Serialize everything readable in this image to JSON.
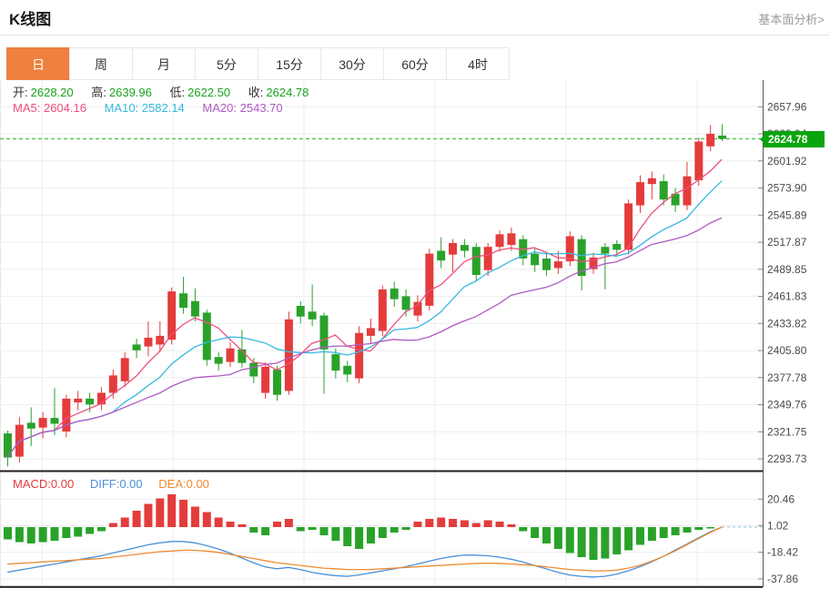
{
  "header": {
    "title": "K线图",
    "link": "基本面分析>"
  },
  "tabs": {
    "items": [
      {
        "label": "日",
        "active": true
      },
      {
        "label": "周",
        "active": false
      },
      {
        "label": "月",
        "active": false
      },
      {
        "label": "5分",
        "active": false
      },
      {
        "label": "15分",
        "active": false
      },
      {
        "label": "30分",
        "active": false
      },
      {
        "label": "60分",
        "active": false
      },
      {
        "label": "4时",
        "active": false
      }
    ]
  },
  "ohlc_info": {
    "open_label": "开:",
    "open": "2628.20",
    "high_label": "高:",
    "high": "2639.96",
    "low_label": "低:",
    "low": "2622.50",
    "close_label": "收:",
    "close": "2624.78"
  },
  "ma_info": {
    "ma5_label": "MA5:",
    "ma5": "2604.16",
    "ma10_label": "MA10:",
    "ma10": "2582.14",
    "ma20_label": "MA20:",
    "ma20": "2543.70"
  },
  "macd_info": {
    "macd_label": "MACD:",
    "macd": "0.00",
    "diff_label": "DIFF:",
    "diff": "0.00",
    "dea_label": "DEA:",
    "dea": "0.00"
  },
  "price_badge": "2624.78",
  "colors": {
    "up": "#e43c3c",
    "down": "#2aa22a",
    "badge": "#0aa50e",
    "tab_accent": "#ee8140",
    "ma5": "#ee4f7e",
    "ma10": "#36b8e0",
    "ma20": "#b05ac4",
    "diff": "#4a90d8",
    "dea": "#ef8b31",
    "price_line": "#2db82d",
    "macd_zero_dash": "#8fc0dc",
    "grid": "#ededed",
    "axis": "#555555",
    "separator": "#1f1f1f"
  },
  "chart_data": {
    "type": "candlestick",
    "title": "K线图 日线",
    "price_axis_ticks": [
      "2657.96",
      "2629.94",
      "2601.92",
      "2573.90",
      "2545.89",
      "2517.87",
      "2489.85",
      "2461.83",
      "2433.82",
      "2405.80",
      "2377.78",
      "2349.76",
      "2321.75",
      "2293.73"
    ],
    "macd_axis_ticks": [
      "20.46",
      "1.02",
      "-18.42",
      "-37.86"
    ],
    "last_price": 2624.78,
    "ma_windows": [
      5,
      10,
      20
    ],
    "candles": [
      [
        2320,
        2323,
        2286,
        2295
      ],
      [
        2296,
        2337,
        2290,
        2329
      ],
      [
        2331,
        2347,
        2307,
        2325
      ],
      [
        2326,
        2342,
        2315,
        2336
      ],
      [
        2336,
        2367,
        2318,
        2330
      ],
      [
        2322,
        2360,
        2316,
        2356
      ],
      [
        2352,
        2364,
        2344,
        2356
      ],
      [
        2356,
        2362,
        2342,
        2350
      ],
      [
        2350,
        2368,
        2344,
        2362
      ],
      [
        2362,
        2386,
        2356,
        2380
      ],
      [
        2374,
        2404,
        2368,
        2398
      ],
      [
        2412,
        2418,
        2398,
        2406
      ],
      [
        2410,
        2436,
        2400,
        2419
      ],
      [
        2412,
        2436,
        2404,
        2421
      ],
      [
        2417,
        2471,
        2412,
        2467
      ],
      [
        2465,
        2482,
        2444,
        2450
      ],
      [
        2457,
        2470,
        2436,
        2441
      ],
      [
        2445,
        2448,
        2390,
        2396
      ],
      [
        2399,
        2404,
        2385,
        2392
      ],
      [
        2394,
        2414,
        2389,
        2408
      ],
      [
        2407,
        2427,
        2388,
        2393
      ],
      [
        2393,
        2398,
        2372,
        2379
      ],
      [
        2362,
        2394,
        2356,
        2389
      ],
      [
        2386,
        2390,
        2354,
        2360
      ],
      [
        2364,
        2446,
        2360,
        2438
      ],
      [
        2452,
        2457,
        2434,
        2441
      ],
      [
        2446,
        2474,
        2431,
        2438
      ],
      [
        2442,
        2445,
        2361,
        2407
      ],
      [
        2402,
        2408,
        2377,
        2385
      ],
      [
        2390,
        2395,
        2373,
        2381
      ],
      [
        2377,
        2431,
        2372,
        2424
      ],
      [
        2421,
        2439,
        2413,
        2429
      ],
      [
        2426,
        2473,
        2421,
        2469
      ],
      [
        2470,
        2477,
        2451,
        2459
      ],
      [
        2462,
        2469,
        2441,
        2448
      ],
      [
        2442,
        2463,
        2436,
        2456
      ],
      [
        2452,
        2511,
        2447,
        2506
      ],
      [
        2509,
        2523,
        2491,
        2499
      ],
      [
        2505,
        2521,
        2487,
        2517
      ],
      [
        2515,
        2521,
        2502,
        2509
      ],
      [
        2513,
        2517,
        2477,
        2484
      ],
      [
        2489,
        2517,
        2483,
        2513
      ],
      [
        2513,
        2530,
        2508,
        2526
      ],
      [
        2515,
        2533,
        2509,
        2527
      ],
      [
        2521,
        2525,
        2494,
        2501
      ],
      [
        2506,
        2511,
        2487,
        2494
      ],
      [
        2501,
        2507,
        2483,
        2489
      ],
      [
        2491,
        2509,
        2485,
        2498
      ],
      [
        2498,
        2529,
        2493,
        2524
      ],
      [
        2521,
        2525,
        2468,
        2483
      ],
      [
        2490,
        2507,
        2485,
        2502
      ],
      [
        2513,
        2517,
        2469,
        2506
      ],
      [
        2516,
        2520,
        2504,
        2510
      ],
      [
        2510,
        2562,
        2505,
        2558
      ],
      [
        2556,
        2587,
        2548,
        2580
      ],
      [
        2578,
        2591,
        2562,
        2584
      ],
      [
        2581,
        2588,
        2556,
        2562
      ],
      [
        2568,
        2574,
        2549,
        2556
      ],
      [
        2556,
        2601,
        2551,
        2586
      ],
      [
        2582,
        2626,
        2576,
        2622
      ],
      [
        2617,
        2639,
        2612,
        2630
      ],
      [
        2628.2,
        2639.96,
        2622.5,
        2624.78
      ]
    ],
    "macd": {
      "hist": [
        -9,
        -11,
        -12,
        -11,
        -10,
        -8,
        -7,
        -5,
        -3,
        3,
        7,
        12,
        17,
        21,
        24,
        20,
        15,
        11,
        7,
        4,
        2,
        -4,
        -6,
        4,
        6,
        -3,
        -2,
        -6,
        -10,
        -14,
        -16,
        -12,
        -8,
        -4,
        -2,
        4,
        6,
        7,
        6,
        5,
        3,
        5,
        4,
        2,
        -3,
        -8,
        -12,
        -16,
        -19,
        -22,
        -24,
        -23,
        -20,
        -17,
        -13,
        -10,
        -8,
        -6,
        -4,
        -2,
        -1,
        0
      ],
      "diff": [
        -33,
        -31.5,
        -30,
        -28.5,
        -27,
        -25.5,
        -24,
        -22.5,
        -21,
        -19,
        -17,
        -15,
        -13,
        -11.5,
        -10.5,
        -10.5,
        -11.5,
        -13.5,
        -16,
        -19,
        -22.5,
        -26,
        -29,
        -30.5,
        -29.5,
        -31,
        -33,
        -34.5,
        -35.5,
        -36,
        -35,
        -33.5,
        -32,
        -30.5,
        -29,
        -27,
        -25,
        -23,
        -21.5,
        -20.5,
        -20.5,
        -21,
        -22,
        -23.5,
        -25.5,
        -28,
        -30.5,
        -33,
        -35,
        -36,
        -36.5,
        -36,
        -34.5,
        -32,
        -29,
        -25.5,
        -21.5,
        -17,
        -12.5,
        -8,
        -3.5,
        0
      ],
      "dea": [
        -27,
        -26.5,
        -26,
        -25.5,
        -25,
        -24.5,
        -24,
        -23.5,
        -23,
        -22,
        -21,
        -20,
        -19,
        -18,
        -17.5,
        -17,
        -17,
        -17.5,
        -18.5,
        -20,
        -21.5,
        -23,
        -24.5,
        -26,
        -27,
        -28,
        -29,
        -30,
        -30.5,
        -31,
        -31,
        -31,
        -30.5,
        -30,
        -29.5,
        -29,
        -28.5,
        -28,
        -27.5,
        -27,
        -26.5,
        -26.5,
        -26.5,
        -27,
        -27.5,
        -28,
        -29,
        -30,
        -31,
        -31.5,
        -32,
        -32,
        -31.5,
        -30,
        -28,
        -25,
        -21.5,
        -17.5,
        -13,
        -8.5,
        -4,
        0
      ]
    }
  }
}
